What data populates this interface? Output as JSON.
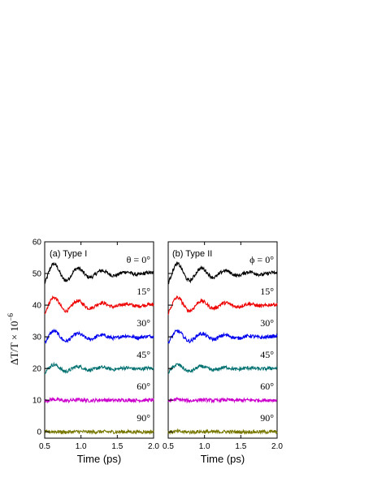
{
  "chart_data": {
    "type": "line",
    "ylabel": "ΔT/T × 10",
    "ylabel_exponent": "−6",
    "ylim": [
      -2,
      60
    ],
    "xlim": [
      0.5,
      2.0
    ],
    "yticks": [
      "0",
      "10",
      "20",
      "30",
      "40",
      "50",
      "60"
    ],
    "xticks": [
      "0.5",
      "1.0",
      "1.5",
      "2.0"
    ],
    "panels": [
      {
        "label": "(a) Type I",
        "xlabel": "Time (ps)",
        "angle_symbol": "θ",
        "angle_label": "θ = 0°",
        "series": [
          {
            "name": "0°",
            "color": "#000000",
            "offset": 50,
            "amplitude": 1.0
          },
          {
            "name": "15°",
            "color": "#ee0000",
            "offset": 40,
            "amplitude": 0.8
          },
          {
            "name": "30°",
            "color": "#0000ee",
            "offset": 30,
            "amplitude": 0.6
          },
          {
            "name": "45°",
            "color": "#007070",
            "offset": 20,
            "amplitude": 0.4
          },
          {
            "name": "60°",
            "color": "#cc00cc",
            "offset": 10,
            "amplitude": 0.08
          },
          {
            "name": "90°",
            "color": "#777700",
            "offset": 0,
            "amplitude": 0.03
          }
        ]
      },
      {
        "label": "(b) Type II",
        "xlabel": "Time (ps)",
        "angle_symbol": "ϕ",
        "angle_label": "ϕ = 0°",
        "series": [
          {
            "name": "0°",
            "color": "#000000",
            "offset": 50,
            "amplitude": 1.0
          },
          {
            "name": "15°",
            "color": "#ee0000",
            "offset": 40,
            "amplitude": 0.8
          },
          {
            "name": "30°",
            "color": "#0000ee",
            "offset": 30,
            "amplitude": 0.6
          },
          {
            "name": "45°",
            "color": "#007070",
            "offset": 20,
            "amplitude": 0.4
          },
          {
            "name": "60°",
            "color": "#cc00cc",
            "offset": 10,
            "amplitude": 0.08
          },
          {
            "name": "90°",
            "color": "#777700",
            "offset": 0,
            "amplitude": 0.03
          }
        ]
      }
    ]
  }
}
